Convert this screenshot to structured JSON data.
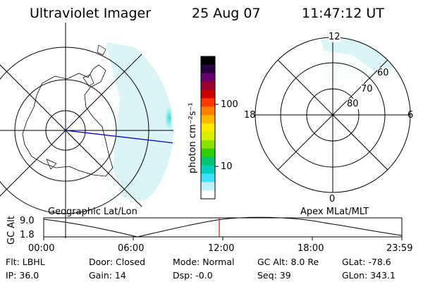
{
  "header": {
    "title": "Ultraviolet Imager",
    "date": "25 Aug 07",
    "time": "11:47:12 UT"
  },
  "left_panel": {
    "label": "Geographic Lat/Lon"
  },
  "right_panel": {
    "label": "Apex MLat/MLT",
    "mlt_labels": [
      "12",
      "18",
      "6",
      "0"
    ],
    "lat_labels": [
      "60",
      "70",
      "80"
    ]
  },
  "colorbar": {
    "unit": "photon cm⁻²s⁻¹",
    "ticks": [
      "100",
      "10"
    ],
    "colors": [
      "#000000",
      "#2a0040",
      "#6a006a",
      "#9a0030",
      "#cc0000",
      "#ff3a00",
      "#ff8000",
      "#ffb800",
      "#ffe800",
      "#d4f000",
      "#8ce000",
      "#30d000",
      "#00c870",
      "#00d0c0",
      "#40e0ff",
      "#c0f0ff",
      "#ffffff"
    ]
  },
  "altitude_plot": {
    "ylabel": "GC Alt",
    "y_ticks": [
      "9.0",
      "1.8"
    ],
    "x_ticks": [
      "00:00",
      "06:00",
      "12:00",
      "18:00",
      "23:59"
    ],
    "marker_color": "#ff0000"
  },
  "footer": {
    "flt": "Flt: LBHL",
    "ip": "IP: 36.0",
    "door": "Door: Closed",
    "gain": "Gain: 14",
    "mode": "Mode: Normal",
    "dsp": "Dsp:   -0.0",
    "gc_alt": "GC Alt: 8.0 Re",
    "seq": "Seq: 39",
    "glat": "GLat: -78.6",
    "glon": "GLon: 343.1"
  }
}
